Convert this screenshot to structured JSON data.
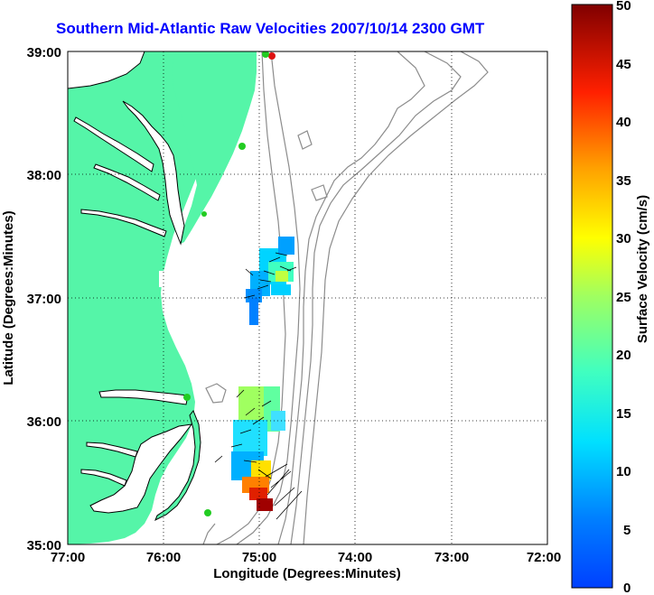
{
  "title": "Southern Mid-Atlantic Raw Velocities 2007/10/14 2300 GMT",
  "x_axis": {
    "label": "Longitude (Degrees:Minutes)",
    "ticks": [
      "77:00",
      "76:00",
      "75:00",
      "74:00",
      "73:00",
      "72:00"
    ]
  },
  "y_axis": {
    "label": "Latitude (Degrees:Minutes)",
    "ticks": [
      "39:00",
      "38:00",
      "37:00",
      "36:00",
      "35:00"
    ]
  },
  "colorbar": {
    "label": "Surface Velocity (cm/s)",
    "ticks": [
      "50",
      "45",
      "40",
      "35",
      "30",
      "25",
      "20",
      "15",
      "10",
      "5",
      "0"
    ],
    "min": 0,
    "max": 50,
    "colormap": "jet"
  },
  "colors": {
    "land": "#55f5a8",
    "bathymetry": "#8c8c8c",
    "coastline": "#000000",
    "title": "#0000ff",
    "station_green": "#22cc22",
    "station_red": "#dd1111"
  }
}
